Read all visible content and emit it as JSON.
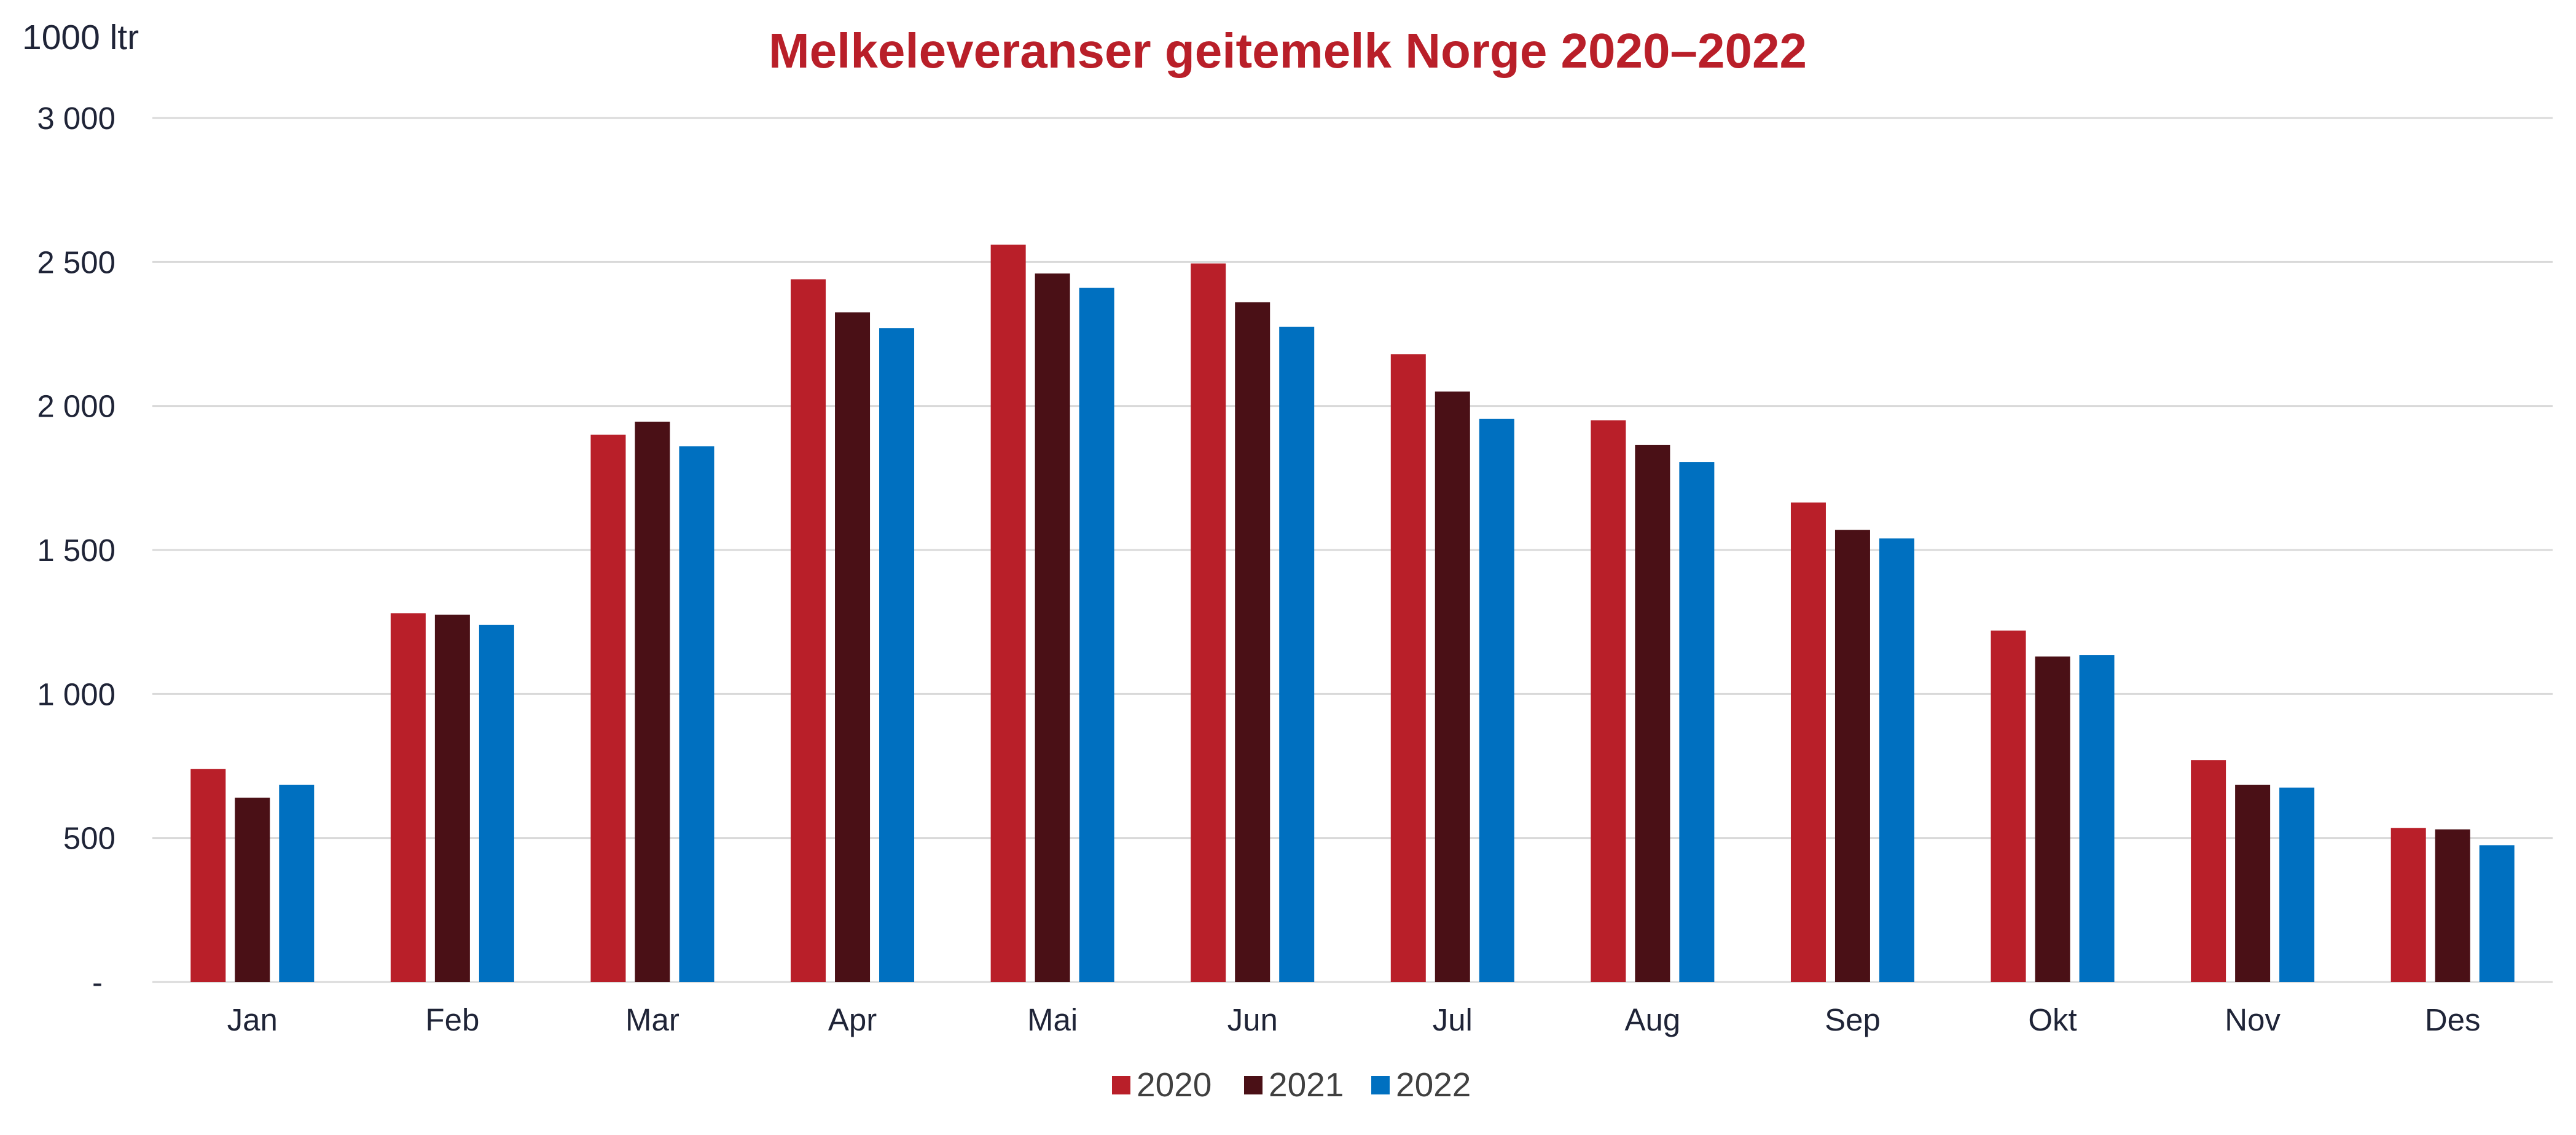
{
  "chart_data": {
    "type": "bar",
    "title": "Melkeleveranser geitemelk Norge 2020–2022",
    "ylabel": "1000 ltr",
    "xlabel": "",
    "ylim": [
      0,
      3000
    ],
    "yticks": [
      0,
      500,
      1000,
      1500,
      2000,
      2500,
      3000
    ],
    "ytick_labels": [
      "-",
      "500",
      "1 000",
      "1 500",
      "2 000",
      "2 500",
      "3 000"
    ],
    "grid": true,
    "legend_position": "bottom",
    "categories": [
      "Jan",
      "Feb",
      "Mar",
      "Apr",
      "Mai",
      "Jun",
      "Jul",
      "Aug",
      "Sep",
      "Okt",
      "Nov",
      "Des"
    ],
    "series": [
      {
        "name": "2020",
        "color": "#b91f29",
        "values": [
          740,
          1280,
          1900,
          2440,
          2560,
          2495,
          2180,
          1950,
          1665,
          1220,
          770,
          535
        ]
      },
      {
        "name": "2021",
        "color": "#4a1016",
        "values": [
          640,
          1275,
          1945,
          2325,
          2460,
          2360,
          2050,
          1865,
          1570,
          1130,
          685,
          530
        ]
      },
      {
        "name": "2022",
        "color": "#0070c0",
        "values": [
          685,
          1240,
          1860,
          2270,
          2410,
          2275,
          1955,
          1805,
          1540,
          1135,
          675,
          475
        ]
      }
    ],
    "colors": {
      "title": "#b91f29",
      "gridline": "#d9d9d9",
      "text": "#1f2437"
    }
  }
}
